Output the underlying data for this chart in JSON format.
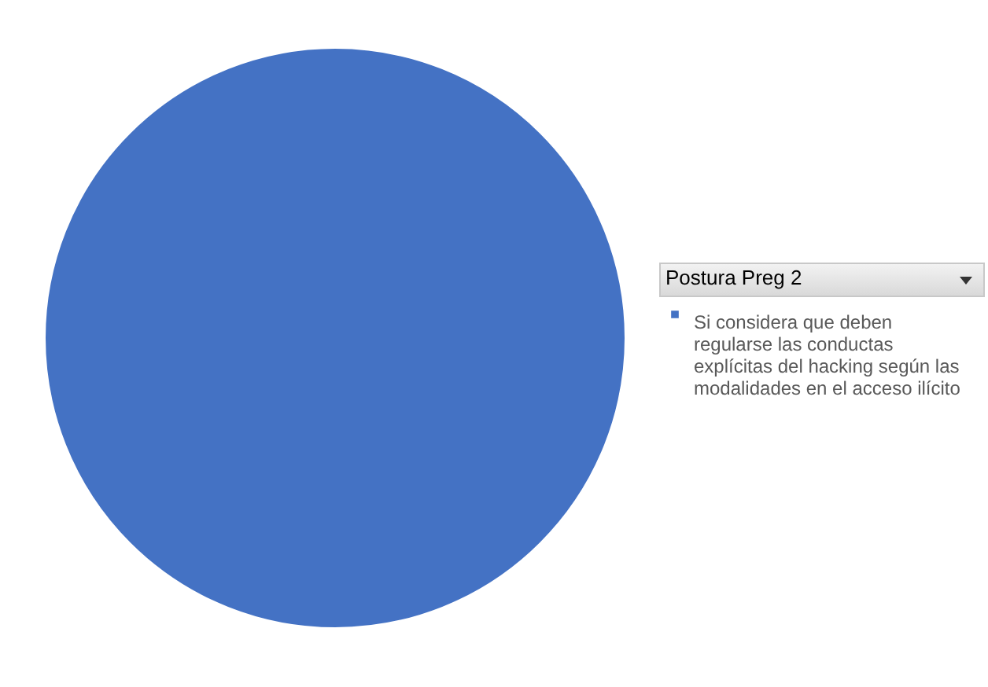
{
  "chart_data": {
    "type": "pie",
    "legend_title": "Postura Preg 2",
    "categories": [
      "Si considera que deben regularse las conductas explícitas del hacking según las modalidades en el acceso ilícito"
    ],
    "values": [
      100
    ],
    "colors": [
      "#4472c4"
    ],
    "legend": "right"
  }
}
